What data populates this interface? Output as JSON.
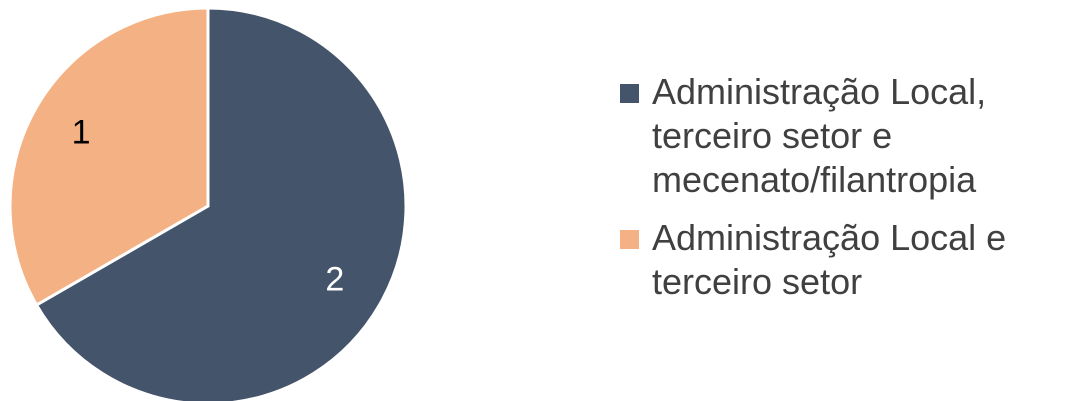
{
  "chart_data": {
    "type": "pie",
    "slices": [
      {
        "name": "Administração Local, terceiro setor e mecenato/filantropia",
        "value": 2,
        "label": "2",
        "color": "#44546A"
      },
      {
        "name": "Administração Local e terceiro setor",
        "value": 1,
        "label": "1",
        "color": "#F4B183"
      }
    ],
    "legend_position": "right",
    "start_angle_deg": 0,
    "direction": "clockwise"
  },
  "legend": {
    "items": [
      {
        "text": "Administração Local,\nterceiro setor e\nmecenato/filantropia",
        "color": "#44546A"
      },
      {
        "text": "Administração Local e\nterceiro setor",
        "color": "#F4B183"
      }
    ]
  }
}
